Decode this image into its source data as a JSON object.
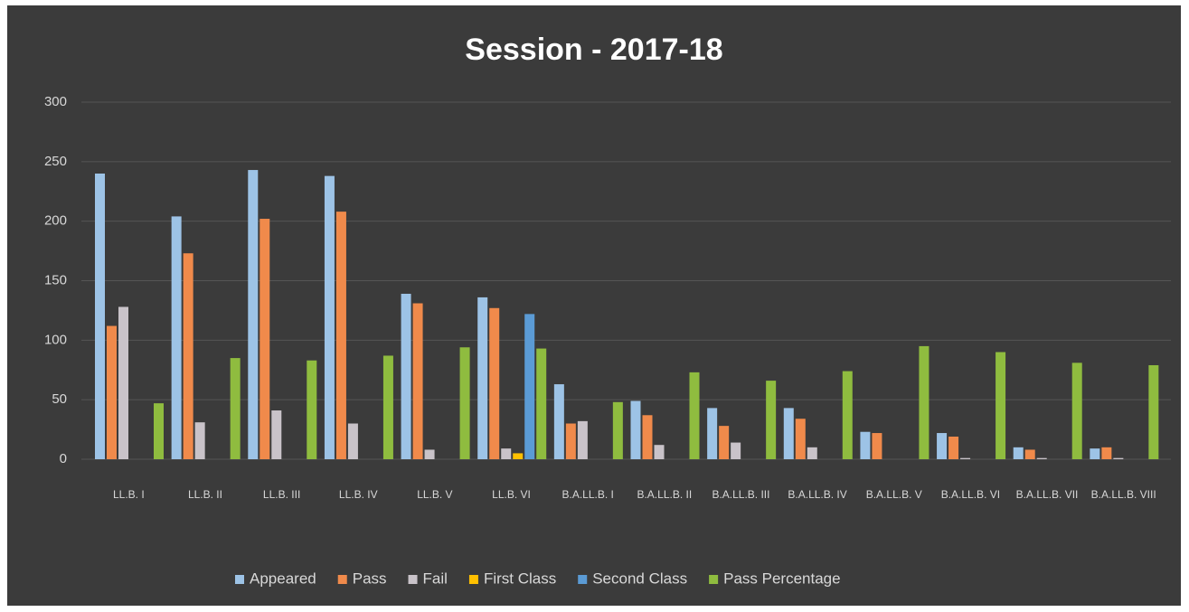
{
  "chart_data": {
    "type": "bar",
    "title": "Session - 2017-18",
    "categories": [
      "LL.B. I",
      "LL.B. II",
      "LL.B. III",
      "LL.B. IV",
      "LL.B. V",
      "LL.B. VI",
      "B.A.LL.B. I",
      "B.A.LL.B. II",
      "B.A.LL.B. III",
      "B.A.LL.B. IV",
      "B.A.LL.B. V",
      "B.A.LL.B. VI",
      "B.A.LL.B. VII",
      "B.A.LL.B. VIII"
    ],
    "series": [
      {
        "name": "Appeared",
        "color": "#9dc3e6",
        "values": [
          240,
          204,
          243,
          238,
          139,
          136,
          63,
          49,
          43,
          43,
          23,
          22,
          10,
          9
        ]
      },
      {
        "name": "Pass",
        "color": "#f08a4b",
        "values": [
          112,
          173,
          202,
          208,
          131,
          127,
          30,
          37,
          28,
          34,
          22,
          19,
          8,
          10
        ]
      },
      {
        "name": "Fail",
        "color": "#c9c3c9",
        "values": [
          128,
          31,
          41,
          30,
          8,
          9,
          32,
          12,
          14,
          10,
          0,
          1,
          1,
          1
        ]
      },
      {
        "name": "First Class",
        "color": "#ffc000",
        "values": [
          0,
          0,
          0,
          0,
          0,
          5,
          0,
          0,
          0,
          0,
          0,
          0,
          0,
          0
        ]
      },
      {
        "name": "Second Class",
        "color": "#5b9bd5",
        "values": [
          0,
          0,
          0,
          0,
          0,
          122,
          0,
          0,
          0,
          0,
          0,
          0,
          0,
          0
        ]
      },
      {
        "name": "Pass Percentage",
        "color": "#8fbc3f",
        "values": [
          47,
          85,
          83,
          87,
          94,
          93,
          48,
          73,
          66,
          74,
          95,
          90,
          81,
          79
        ]
      }
    ],
    "ylim": [
      0,
      300
    ],
    "yticks": [
      0,
      50,
      100,
      150,
      200,
      250,
      300
    ],
    "grid": true,
    "legend": "bottom"
  }
}
